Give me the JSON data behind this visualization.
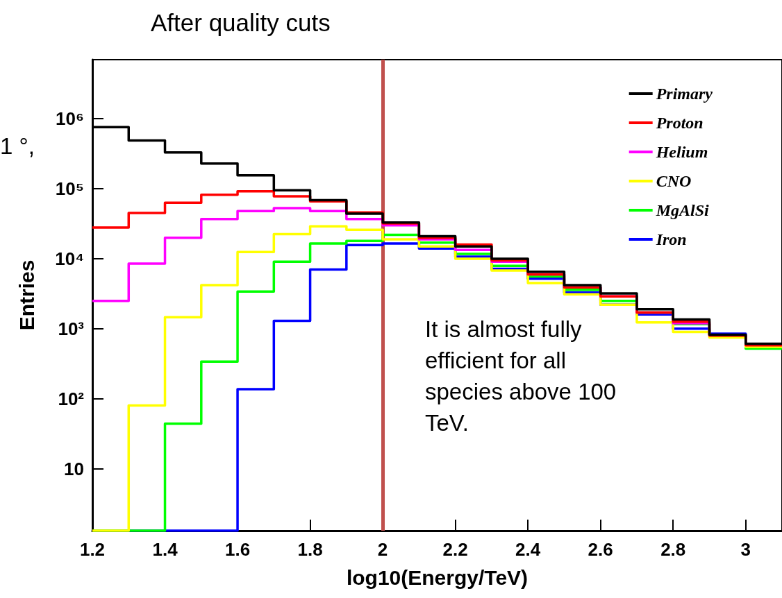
{
  "chart_data": {
    "type": "histogram",
    "title": "After quality cuts",
    "xlabel": "log10(Energy/TeV)",
    "ylabel": "Entries",
    "bins": [
      1.2,
      1.3,
      1.4,
      1.5,
      1.6,
      1.7,
      1.8,
      1.9,
      2.0,
      2.1,
      2.2,
      2.3,
      2.4,
      2.5,
      2.6,
      2.7,
      2.8,
      2.9,
      3.0,
      3.1
    ],
    "series": [
      {
        "name": "Primary",
        "color": "#000000",
        "values": [
          760000,
          490000,
          330000,
          230000,
          156000,
          95000,
          69000,
          44000,
          33000,
          21000,
          15000,
          10000,
          6500,
          4200,
          3200,
          1900,
          1360,
          820,
          610
        ]
      },
      {
        "name": "Proton",
        "color": "#ff0000",
        "values": [
          28000,
          45000,
          63000,
          82000,
          92000,
          78000,
          66000,
          46000,
          32000,
          20000,
          16000,
          9500,
          6000,
          3900,
          2900,
          1700,
          1260,
          800,
          580
        ]
      },
      {
        "name": "Helium",
        "color": "#ff00ff",
        "values": [
          2500,
          8500,
          20000,
          37000,
          48000,
          53000,
          48000,
          37000,
          30000,
          19000,
          13400,
          9100,
          6000,
          3900,
          2900,
          1700,
          1200,
          810,
          590
        ]
      },
      {
        "name": "CNO",
        "color": "#ffff00",
        "values": [
          null,
          80,
          1460,
          4200,
          12500,
          22500,
          29000,
          26000,
          19000,
          15000,
          10000,
          6800,
          4500,
          3100,
          2200,
          1230,
          900,
          750,
          550
        ]
      },
      {
        "name": "MgAlSi",
        "color": "#00ff00",
        "values": [
          null,
          null,
          44,
          340,
          3400,
          9100,
          16500,
          18000,
          22000,
          17000,
          11700,
          7900,
          5600,
          3600,
          2500,
          1700,
          1160,
          810,
          520
        ]
      },
      {
        "name": "Iron",
        "color": "#0000ff",
        "values": [
          null,
          null,
          null,
          null,
          137,
          1300,
          7000,
          15700,
          16500,
          14000,
          10700,
          7200,
          5200,
          3300,
          2200,
          1600,
          1000,
          850,
          580
        ]
      }
    ],
    "log": "y",
    "xlim": [
      1.2,
      3.1
    ],
    "xticks": [
      1.2,
      1.4,
      1.6,
      1.8,
      2,
      2.2,
      2.4,
      2.6,
      2.8,
      3
    ],
    "ylim": [
      1.3,
      7000000
    ],
    "yticks": [
      10,
      {
        "value": 100,
        "label": "10²"
      },
      {
        "value": 1000,
        "label": "10³"
      },
      {
        "value": 10000,
        "label": "10⁴"
      },
      {
        "value": 100000,
        "label": "10⁵"
      },
      {
        "value": 1000000,
        "label": "10⁶"
      }
    ],
    "ref_lines": [
      {
        "axis": "x",
        "value": 2,
        "label": null,
        "color": "#c0504d"
      }
    ],
    "legend": "top right",
    "grid": false,
    "annotations": [
      "It is almost fully efficient for all species above 100 TeV.",
      "1 °,"
    ]
  }
}
